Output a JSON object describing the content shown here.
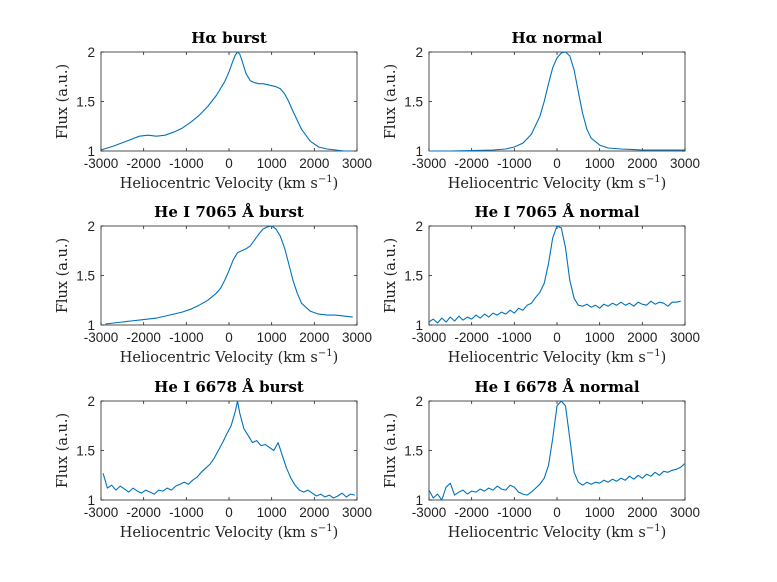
{
  "chart_data": [
    {
      "type": "line",
      "title": "Hα burst",
      "xlabel": "Heliocentric Velocity (km s",
      "xlabel_exp": "−1",
      "xlabel_close": ")",
      "ylabel": "Flux (a.u.)",
      "xlim": [
        -3000,
        3000
      ],
      "ylim": [
        1,
        2
      ],
      "xticks": [
        -3000,
        -2000,
        -1000,
        0,
        1000,
        2000,
        3000
      ],
      "yticks": [
        1,
        1.5,
        2
      ],
      "ytick_labels": [
        "1",
        "1.5",
        "2"
      ],
      "color": "#0072BD",
      "x": [
        -3000,
        -2700,
        -2400,
        -2100,
        -1900,
        -1700,
        -1500,
        -1300,
        -1100,
        -900,
        -700,
        -500,
        -300,
        -100,
        0,
        100,
        150,
        200,
        250,
        300,
        400,
        500,
        600,
        700,
        800,
        900,
        1000,
        1100,
        1200,
        1300,
        1400,
        1500,
        1700,
        1900,
        2100,
        2300,
        2500,
        2700,
        2900
      ],
      "y": [
        1.01,
        1.05,
        1.1,
        1.15,
        1.16,
        1.15,
        1.16,
        1.19,
        1.23,
        1.29,
        1.36,
        1.45,
        1.56,
        1.7,
        1.8,
        1.92,
        1.97,
        2.0,
        1.98,
        1.92,
        1.78,
        1.71,
        1.69,
        1.68,
        1.68,
        1.67,
        1.66,
        1.65,
        1.63,
        1.58,
        1.5,
        1.4,
        1.22,
        1.1,
        1.04,
        1.02,
        1.01,
        1.0,
        1.0
      ]
    },
    {
      "type": "line",
      "title": "Hα normal",
      "xlabel": "Heliocentric Velocity (km s",
      "xlabel_exp": "−1",
      "xlabel_close": ")",
      "ylabel": "Flux (a.u.)",
      "xlim": [
        -3000,
        3000
      ],
      "ylim": [
        1,
        2
      ],
      "xticks": [
        -3000,
        -2000,
        -1000,
        0,
        1000,
        2000,
        3000
      ],
      "yticks": [
        1,
        1.5,
        2
      ],
      "ytick_labels": [
        "1",
        "1.5",
        "2"
      ],
      "color": "#0072BD",
      "x": [
        -3000,
        -2500,
        -2000,
        -1500,
        -1200,
        -1000,
        -800,
        -600,
        -400,
        -300,
        -200,
        -100,
        0,
        100,
        200,
        300,
        400,
        500,
        600,
        700,
        800,
        1000,
        1200,
        1500,
        2000,
        2500,
        3000
      ],
      "y": [
        1.0,
        1.0,
        1.005,
        1.01,
        1.02,
        1.04,
        1.08,
        1.17,
        1.35,
        1.5,
        1.68,
        1.84,
        1.94,
        1.99,
        2.0,
        1.96,
        1.82,
        1.6,
        1.38,
        1.22,
        1.13,
        1.06,
        1.03,
        1.02,
        1.01,
        1.01,
        1.01
      ]
    },
    {
      "type": "line",
      "title": "He I 7065 Å burst",
      "xlabel": "Heliocentric Velocity (km s",
      "xlabel_exp": "−1",
      "xlabel_close": ")",
      "ylabel": "Flux (a.u.)",
      "xlim": [
        -3000,
        3000
      ],
      "ylim": [
        1,
        2
      ],
      "xticks": [
        -3000,
        -2000,
        -1000,
        0,
        1000,
        2000,
        3000
      ],
      "yticks": [
        1,
        1.5,
        2
      ],
      "ytick_labels": [
        "1",
        "1.5",
        "2"
      ],
      "color": "#0072BD",
      "x": [
        -2900,
        -2700,
        -2500,
        -2300,
        -2100,
        -1900,
        -1700,
        -1500,
        -1300,
        -1100,
        -900,
        -700,
        -500,
        -300,
        -200,
        -100,
        0,
        100,
        200,
        300,
        400,
        500,
        600,
        700,
        800,
        900,
        1000,
        1100,
        1200,
        1300,
        1400,
        1500,
        1600,
        1700,
        1900,
        2100,
        2300,
        2500,
        2700,
        2900
      ],
      "y": [
        1.01,
        1.02,
        1.03,
        1.04,
        1.05,
        1.06,
        1.07,
        1.09,
        1.11,
        1.13,
        1.16,
        1.2,
        1.25,
        1.32,
        1.37,
        1.45,
        1.55,
        1.66,
        1.73,
        1.75,
        1.77,
        1.8,
        1.86,
        1.92,
        1.97,
        1.99,
        2.0,
        1.97,
        1.9,
        1.78,
        1.62,
        1.45,
        1.32,
        1.22,
        1.14,
        1.11,
        1.1,
        1.1,
        1.09,
        1.08
      ]
    },
    {
      "type": "line",
      "title": "He I 7065 Å normal",
      "xlabel": "Heliocentric Velocity (km s",
      "xlabel_exp": "−1",
      "xlabel_close": ")",
      "ylabel": "Flux (a.u.)",
      "xlim": [
        -3000,
        3000
      ],
      "ylim": [
        1,
        2
      ],
      "xticks": [
        -3000,
        -2000,
        -1000,
        0,
        1000,
        2000,
        3000
      ],
      "yticks": [
        1,
        1.5,
        2
      ],
      "ytick_labels": [
        "1",
        "1.5",
        "2"
      ],
      "color": "#0072BD",
      "x": [
        -3000,
        -2900,
        -2800,
        -2700,
        -2600,
        -2500,
        -2400,
        -2300,
        -2200,
        -2100,
        -2000,
        -1900,
        -1800,
        -1700,
        -1600,
        -1500,
        -1400,
        -1300,
        -1200,
        -1100,
        -1000,
        -900,
        -800,
        -700,
        -600,
        -500,
        -400,
        -300,
        -200,
        -100,
        0,
        100,
        200,
        300,
        400,
        500,
        600,
        700,
        800,
        900,
        1000,
        1100,
        1200,
        1300,
        1400,
        1500,
        1600,
        1700,
        1800,
        1900,
        2000,
        2100,
        2200,
        2300,
        2400,
        2500,
        2600,
        2700,
        2800,
        2900
      ],
      "y": [
        1.03,
        1.06,
        1.02,
        1.07,
        1.03,
        1.08,
        1.04,
        1.09,
        1.05,
        1.08,
        1.06,
        1.1,
        1.07,
        1.11,
        1.08,
        1.12,
        1.1,
        1.13,
        1.11,
        1.15,
        1.12,
        1.17,
        1.15,
        1.2,
        1.22,
        1.28,
        1.33,
        1.42,
        1.62,
        1.88,
        2.0,
        1.98,
        1.78,
        1.45,
        1.27,
        1.2,
        1.19,
        1.21,
        1.18,
        1.2,
        1.17,
        1.21,
        1.19,
        1.22,
        1.2,
        1.23,
        1.2,
        1.22,
        1.19,
        1.23,
        1.21,
        1.2,
        1.24,
        1.21,
        1.23,
        1.22,
        1.19,
        1.23,
        1.23,
        1.24
      ]
    },
    {
      "type": "line",
      "title": "He I 6678 Å burst",
      "xlabel": "Heliocentric Velocity (km s",
      "xlabel_exp": "−1",
      "xlabel_close": ")",
      "ylabel": "Flux (a.u.)",
      "xlim": [
        -3000,
        3000
      ],
      "ylim": [
        1,
        2
      ],
      "xticks": [
        -3000,
        -2000,
        -1000,
        0,
        1000,
        2000,
        3000
      ],
      "yticks": [
        1,
        1.5,
        2
      ],
      "ytick_labels": [
        "1",
        "1.5",
        "2"
      ],
      "color": "#0072BD",
      "x": [
        -2950,
        -2850,
        -2750,
        -2650,
        -2550,
        -2450,
        -2350,
        -2250,
        -2150,
        -2050,
        -1950,
        -1850,
        -1750,
        -1650,
        -1550,
        -1450,
        -1350,
        -1250,
        -1150,
        -1050,
        -950,
        -850,
        -750,
        -650,
        -550,
        -450,
        -350,
        -250,
        -150,
        -50,
        50,
        150,
        200,
        250,
        350,
        450,
        550,
        650,
        750,
        850,
        950,
        1050,
        1150,
        1250,
        1350,
        1450,
        1550,
        1650,
        1750,
        1850,
        1950,
        2050,
        2150,
        2250,
        2350,
        2450,
        2550,
        2650,
        2750,
        2850,
        2950
      ],
      "y": [
        1.27,
        1.12,
        1.15,
        1.1,
        1.14,
        1.11,
        1.08,
        1.12,
        1.09,
        1.07,
        1.1,
        1.08,
        1.06,
        1.1,
        1.09,
        1.12,
        1.1,
        1.14,
        1.16,
        1.18,
        1.16,
        1.2,
        1.23,
        1.28,
        1.32,
        1.36,
        1.42,
        1.5,
        1.58,
        1.67,
        1.75,
        1.9,
        2.0,
        1.88,
        1.72,
        1.65,
        1.58,
        1.6,
        1.55,
        1.56,
        1.53,
        1.5,
        1.58,
        1.45,
        1.32,
        1.22,
        1.15,
        1.1,
        1.08,
        1.1,
        1.07,
        1.04,
        1.06,
        1.03,
        1.05,
        1.02,
        1.04,
        1.07,
        1.03,
        1.06,
        1.05
      ]
    },
    {
      "type": "line",
      "title": "He I 6678 Å normal",
      "xlabel": "Heliocentric Velocity (km s",
      "xlabel_exp": "−1",
      "xlabel_close": ")",
      "ylabel": "Flux (a.u.)",
      "xlim": [
        -3000,
        3000
      ],
      "ylim": [
        1,
        2
      ],
      "xticks": [
        -3000,
        -2000,
        -1000,
        0,
        1000,
        2000,
        3000
      ],
      "yticks": [
        1,
        1.5,
        2
      ],
      "ytick_labels": [
        "1",
        "1.5",
        "2"
      ],
      "color": "#0072BD",
      "x": [
        -3000,
        -2900,
        -2800,
        -2700,
        -2600,
        -2500,
        -2400,
        -2300,
        -2200,
        -2100,
        -2000,
        -1900,
        -1800,
        -1700,
        -1600,
        -1500,
        -1400,
        -1300,
        -1200,
        -1100,
        -1000,
        -900,
        -800,
        -700,
        -600,
        -500,
        -400,
        -300,
        -200,
        -100,
        0,
        100,
        200,
        300,
        400,
        500,
        600,
        700,
        800,
        900,
        1000,
        1100,
        1200,
        1300,
        1400,
        1500,
        1600,
        1700,
        1800,
        1900,
        2000,
        2100,
        2200,
        2300,
        2400,
        2500,
        2600,
        2700,
        2800,
        2900,
        3000
      ],
      "y": [
        1.1,
        1.02,
        1.06,
        1.0,
        1.13,
        1.17,
        1.05,
        1.08,
        1.1,
        1.06,
        1.09,
        1.08,
        1.11,
        1.09,
        1.12,
        1.1,
        1.14,
        1.11,
        1.1,
        1.15,
        1.13,
        1.08,
        1.06,
        1.05,
        1.08,
        1.12,
        1.16,
        1.22,
        1.35,
        1.62,
        1.95,
        2.0,
        1.95,
        1.62,
        1.28,
        1.18,
        1.15,
        1.18,
        1.16,
        1.18,
        1.17,
        1.2,
        1.18,
        1.21,
        1.19,
        1.22,
        1.2,
        1.24,
        1.21,
        1.25,
        1.22,
        1.26,
        1.24,
        1.28,
        1.25,
        1.29,
        1.28,
        1.3,
        1.31,
        1.33,
        1.37
      ]
    }
  ]
}
